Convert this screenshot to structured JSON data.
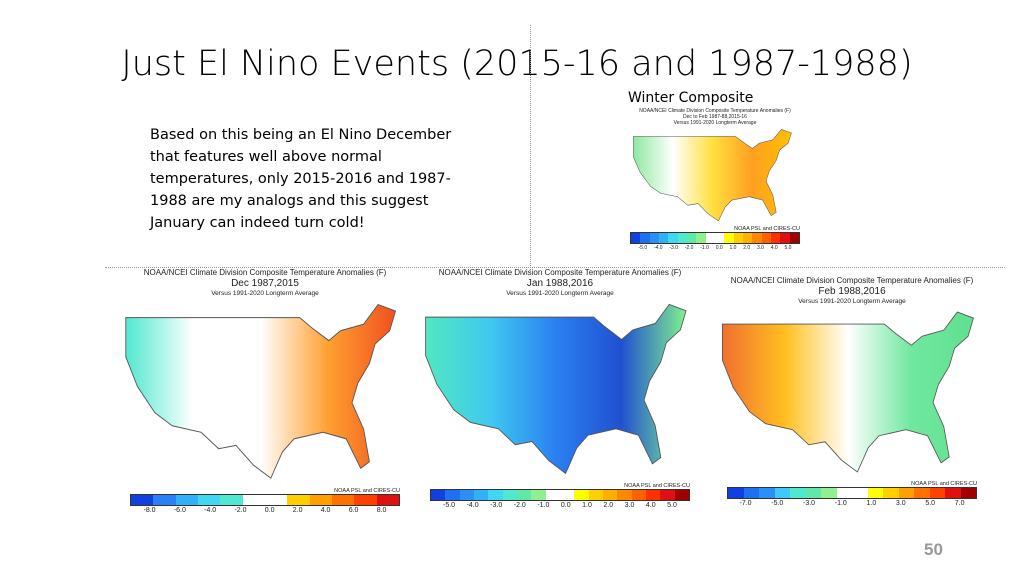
{
  "slide": {
    "title": "Just El Nino Events (2015-16 and 1987-1988)",
    "body": "Based on this being an El Nino December that features well above normal temperatures,  only 2015-2016 and  1987-1988 are my analogs and this suggest January can indeed turn cold!",
    "winter_label": "Winter Composite",
    "page_number": "50"
  },
  "maps": [
    {
      "id": "winter",
      "header": "NOAA/NCEI Climate Division Composite Temperature Anomalies (F)",
      "period": "Dec to Feb  1987-88,2015-16",
      "baseline": "Versus 1991-2020 Longterm Average",
      "credit": "NOAA PSL and CIRES-CU",
      "colorbar_labels": [
        "-5.0",
        "-4.0",
        "-3.0",
        "-2.0",
        "-1.0",
        "0.0",
        "1.0",
        "2.0",
        "3.0",
        "4.0",
        "5.0"
      ],
      "colorbar_colors": [
        "#1040e0",
        "#1e70f0",
        "#2a90f8",
        "#30b0f8",
        "#40d8f0",
        "#50e8d0",
        "#60e8a8",
        "#90f090",
        "#ffffff",
        "#ffffff",
        "#ffff00",
        "#ffd000",
        "#ffb000",
        "#ff8800",
        "#ff6000",
        "#ff3000",
        "#e01010",
        "#a00000"
      ],
      "gradient": [
        "#90e8a0",
        "#ffffff",
        "#ffe040",
        "#ffa020",
        "#ffc000"
      ]
    },
    {
      "id": "dec",
      "header": "NOAA/NCEI Climate Division Composite Temperature Anomalies (F)",
      "period": "Dec  1987,2015",
      "baseline": "Versus 1991-2020 Longterm Average",
      "credit": "NOAA PSL and CIRES-CU",
      "colorbar_labels": [
        "-8.0",
        "-6.0",
        "-4.0",
        "-2.0",
        "0.0",
        "2.0",
        "4.0",
        "6.0",
        "8.0"
      ],
      "colorbar_colors": [
        "#1040e0",
        "#2a80f8",
        "#30b0f8",
        "#40d8f0",
        "#50e8d0",
        "#ffffff",
        "#ffffff",
        "#ffd000",
        "#ffa000",
        "#ff7000",
        "#ff4000",
        "#e01010"
      ],
      "gradient": [
        "#50e8d0",
        "#ffffff",
        "#ffffff",
        "#ffa030",
        "#f05020"
      ]
    },
    {
      "id": "jan",
      "header": "NOAA/NCEI Climate Division Composite Temperature Anomalies (F)",
      "period": "Jan  1988,2016",
      "baseline": "Versus 1991-2020 Longterm Average",
      "credit": "NOAA PSL and CIRES-CU",
      "colorbar_labels": [
        "-5.0",
        "-4.0",
        "-3.0",
        "-2.0",
        "-1.0",
        "0.0",
        "1.0",
        "2.0",
        "3.0",
        "4.0",
        "5.0"
      ],
      "colorbar_colors": [
        "#1040e0",
        "#1e70f0",
        "#2a90f8",
        "#30b0f8",
        "#40d8f0",
        "#50e8d0",
        "#60e8a8",
        "#90f090",
        "#ffffff",
        "#ffffff",
        "#ffff00",
        "#ffd000",
        "#ffb000",
        "#ff8800",
        "#ff6000",
        "#ff3000",
        "#e01010",
        "#a00000"
      ],
      "gradient": [
        "#50e8c0",
        "#40c8f0",
        "#2a80f0",
        "#2050d0",
        "#80f090"
      ]
    },
    {
      "id": "feb",
      "header": "NOAA/NCEI Climate Division Composite Temperature Anomalies (F)",
      "period": "Feb  1988,2016",
      "baseline": "Versus 1991-2020 Longterm Average",
      "credit": "NOAA PSL and CIRES-CU",
      "colorbar_labels": [
        "-7.0",
        "-5.0",
        "-3.0",
        "-1.0",
        "1.0",
        "3.0",
        "5.0",
        "7.0"
      ],
      "colorbar_colors": [
        "#1040e0",
        "#1e70f0",
        "#2a90f8",
        "#40c8f8",
        "#50e8d0",
        "#60e8a8",
        "#90f090",
        "#ffffff",
        "#ffffff",
        "#ffff00",
        "#ffd000",
        "#ffa000",
        "#ff7000",
        "#ff4000",
        "#e01010",
        "#a00000"
      ],
      "gradient": [
        "#f07030",
        "#ffc020",
        "#ffffff",
        "#70e8a0",
        "#60e090"
      ]
    }
  ]
}
